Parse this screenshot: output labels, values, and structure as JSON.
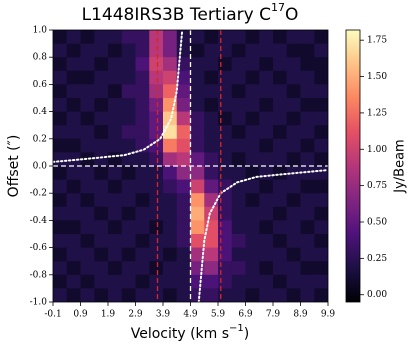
{
  "chart_data": {
    "type": "heatmap",
    "title": "L1448IRS3B Tertiary C",
    "title_sup": "17",
    "title_end": "O",
    "x_label": "Velocity (km s",
    "x_label_sup": "−1",
    "x_label_end": ")",
    "y_label": "Offset (″)",
    "colorbar_label": "Jy/Beam",
    "xlim": [
      -0.1,
      9.9
    ],
    "xticks": [
      -0.1,
      0.9,
      1.9,
      2.9,
      3.9,
      4.9,
      5.9,
      6.9,
      7.9,
      8.9,
      9.9
    ],
    "ylim": [
      -1.0,
      1.0
    ],
    "yticks": [
      {
        "value": -1.0,
        "label": "-1.0"
      },
      -0.8,
      -0.6,
      -0.4,
      -0.2,
      {
        "value": 0.0,
        "label": "0.0"
      },
      0.2,
      0.4,
      0.6,
      0.8,
      {
        "value": 1.0,
        "label": "1.0"
      }
    ],
    "clim": [
      -0.05,
      1.82
    ],
    "cticks": [
      {
        "value": 0,
        "label": "0.00"
      },
      0.25,
      {
        "value": 0.5,
        "label": "0.50"
      },
      0.75,
      {
        "value": 1,
        "label": "1.00"
      },
      1.25,
      {
        "value": 1.5,
        "label": "1.50"
      },
      1.75
    ],
    "colormap": [
      "#000004",
      "#1c1044",
      "#4f127b",
      "#812581",
      "#b5367a",
      "#e55064",
      "#fb8761",
      "#fec287",
      "#fcfdbf"
    ],
    "x": [
      0.15,
      0.65,
      1.15,
      1.65,
      2.15,
      2.65,
      3.15,
      3.65,
      4.15,
      4.65,
      5.15,
      5.65,
      6.15,
      6.65,
      7.15,
      7.65,
      8.15,
      8.65,
      9.15,
      9.65
    ],
    "y": [
      0.95,
      0.85,
      0.75,
      0.65,
      0.55,
      0.45,
      0.35,
      0.25,
      0.15,
      0.05,
      -0.05,
      -0.15,
      -0.25,
      -0.35,
      -0.45,
      -0.55,
      -0.65,
      -0.75,
      -0.85,
      -0.95
    ],
    "z": [
      [
        0.1,
        0.2,
        0.1,
        0.2,
        0.2,
        0.3,
        0.3,
        0.9,
        0.6,
        0.2,
        0.2,
        0.1,
        0.2,
        0.2,
        0.1,
        0.2,
        0.1,
        0.2,
        0.2,
        0.1
      ],
      [
        0.2,
        0.1,
        0.2,
        0.2,
        0.1,
        0.2,
        0.3,
        0.9,
        0.6,
        0.2,
        0.1,
        0.2,
        0.2,
        0.1,
        0.2,
        0.2,
        0.2,
        0.1,
        0.1,
        0.2
      ],
      [
        0.1,
        0.2,
        0.2,
        0.1,
        0.2,
        0.2,
        0.4,
        1.0,
        0.8,
        0.3,
        0.2,
        0.2,
        0.1,
        0.2,
        0.2,
        0.1,
        0.2,
        0.2,
        0.1,
        0.1
      ],
      [
        0.2,
        0.1,
        0.1,
        0.2,
        0.2,
        0.2,
        0.3,
        0.9,
        1.0,
        0.4,
        0.2,
        0.1,
        0.2,
        0.2,
        0.1,
        0.2,
        0.1,
        0.2,
        0.2,
        0.1
      ],
      [
        0.1,
        0.2,
        0.2,
        0.2,
        0.1,
        0.3,
        0.3,
        0.8,
        1.2,
        0.5,
        0.2,
        0.2,
        0.2,
        0.1,
        0.2,
        0.2,
        0.2,
        0.1,
        0.2,
        0.2
      ],
      [
        0.2,
        0.1,
        0.2,
        0.1,
        0.2,
        0.2,
        0.3,
        0.6,
        1.4,
        0.6,
        0.2,
        0.1,
        0.2,
        0.2,
        0.2,
        0.1,
        0.2,
        0.2,
        0.1,
        0.1
      ],
      [
        0.1,
        0.2,
        0.1,
        0.2,
        0.2,
        0.2,
        0.3,
        0.5,
        1.6,
        0.9,
        0.3,
        0.2,
        0.1,
        0.2,
        0.1,
        0.2,
        0.2,
        0.1,
        0.2,
        0.2
      ],
      [
        0.2,
        0.2,
        0.2,
        0.1,
        0.2,
        0.3,
        0.3,
        0.5,
        1.7,
        1.2,
        0.3,
        0.2,
        0.2,
        0.1,
        0.2,
        0.2,
        0.1,
        0.2,
        0.2,
        0.1
      ],
      [
        0.1,
        0.1,
        0.2,
        0.2,
        0.2,
        0.2,
        0.3,
        0.4,
        1.3,
        1.1,
        0.3,
        0.2,
        0.2,
        0.2,
        0.2,
        0.1,
        0.2,
        0.2,
        0.1,
        0.2
      ],
      [
        0.2,
        0.2,
        0.1,
        0.2,
        0.1,
        0.2,
        0.2,
        0.3,
        0.8,
        0.9,
        0.5,
        0.3,
        0.2,
        0.1,
        0.2,
        0.2,
        0.2,
        0.1,
        0.2,
        0.1
      ],
      [
        0.1,
        0.2,
        0.2,
        0.1,
        0.2,
        0.1,
        0.2,
        0.2,
        0.4,
        0.7,
        0.7,
        0.3,
        0.2,
        0.2,
        0.1,
        0.2,
        0.1,
        0.2,
        0.2,
        0.2
      ],
      [
        0.2,
        0.1,
        0.2,
        0.2,
        0.1,
        0.2,
        0.2,
        0.2,
        0.3,
        0.4,
        1.0,
        0.5,
        0.3,
        0.2,
        0.2,
        0.1,
        0.2,
        0.2,
        0.1,
        0.1
      ],
      [
        0.1,
        0.2,
        0.1,
        0.2,
        0.2,
        0.2,
        0.1,
        0.2,
        0.2,
        0.3,
        1.4,
        0.8,
        0.3,
        0.2,
        0.1,
        0.2,
        0.2,
        0.1,
        0.2,
        0.2
      ],
      [
        0.2,
        0.2,
        0.2,
        0.1,
        0.2,
        0.1,
        0.2,
        0.2,
        0.2,
        0.3,
        1.5,
        1.0,
        0.3,
        0.2,
        0.2,
        0.2,
        0.1,
        0.2,
        0.2,
        0.1
      ],
      [
        0.1,
        0.1,
        0.2,
        0.2,
        0.1,
        0.2,
        0.2,
        0.1,
        0.2,
        0.3,
        1.4,
        1.1,
        0.4,
        0.2,
        0.2,
        0.1,
        0.2,
        0.2,
        0.1,
        0.2
      ],
      [
        0.2,
        0.2,
        0.1,
        0.2,
        0.2,
        0.2,
        0.1,
        0.2,
        0.2,
        0.3,
        1.1,
        1.1,
        0.4,
        0.3,
        0.2,
        0.2,
        0.1,
        0.2,
        0.2,
        0.1
      ],
      [
        0.1,
        0.2,
        0.2,
        0.1,
        0.2,
        0.1,
        0.2,
        0.2,
        0.1,
        0.2,
        0.8,
        0.9,
        0.4,
        0.2,
        0.2,
        0.2,
        0.2,
        0.1,
        0.2,
        0.2
      ],
      [
        0.2,
        0.1,
        0.2,
        0.2,
        0.1,
        0.2,
        0.2,
        0.1,
        0.2,
        0.2,
        0.6,
        0.7,
        0.3,
        0.3,
        0.2,
        0.1,
        0.2,
        0.2,
        0.1,
        0.1
      ],
      [
        0.1,
        0.2,
        0.1,
        0.2,
        0.2,
        0.2,
        0.1,
        0.2,
        0.2,
        0.2,
        0.4,
        0.4,
        0.3,
        0.2,
        0.2,
        0.2,
        0.1,
        0.2,
        0.2,
        0.2
      ],
      [
        0.2,
        0.1,
        0.2,
        0.1,
        0.2,
        0.1,
        0.2,
        0.2,
        0.1,
        0.2,
        0.3,
        0.3,
        0.2,
        0.2,
        0.1,
        0.2,
        0.2,
        0.1,
        0.2,
        0.1
      ]
    ],
    "vlines": [
      {
        "x": 3.7,
        "color": "#d62728"
      },
      {
        "x": 6.0,
        "color": "#d62728"
      }
    ],
    "sys_velocity": 4.9,
    "zero_offset": 0,
    "curves": [
      {
        "color": "#ffffff",
        "x": [
          -0.1,
          1.0,
          2.5,
          3.2,
          3.8,
          4.2,
          4.4,
          4.6
        ],
        "y": [
          0.03,
          0.05,
          0.08,
          0.12,
          0.2,
          0.35,
          0.55,
          1.0
        ]
      },
      {
        "color": "#ffffff",
        "x": [
          5.2,
          5.4,
          5.6,
          6.0,
          6.6,
          7.3,
          8.8,
          9.9
        ],
        "y": [
          -1.0,
          -0.55,
          -0.35,
          -0.2,
          -0.12,
          -0.08,
          -0.05,
          -0.03
        ]
      }
    ]
  }
}
